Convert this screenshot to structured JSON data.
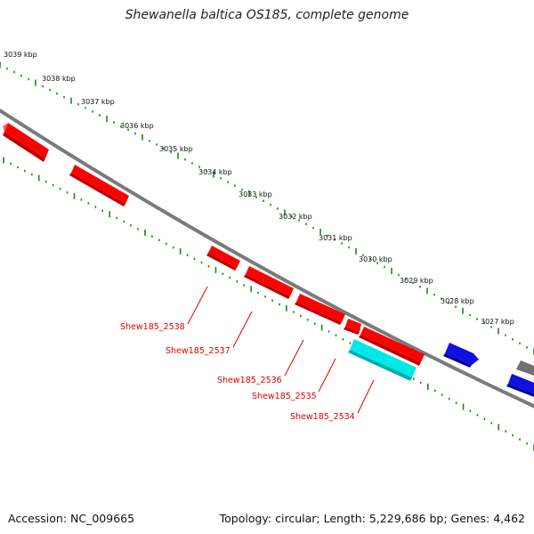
{
  "header": {
    "title": "Shewanella baltica OS185, complete genome"
  },
  "footer": {
    "accession": "Accession: NC_009665",
    "summary": "Topology: circular; Length: 5,229,686 bp; Genes: 4,462"
  },
  "scale_labels": [
    "3039 kbp",
    "3038 kbp",
    "3037 kbp",
    "3036 kbp",
    "3035 kbp",
    "3034 kbp",
    "3033 kbp",
    "3032 kbp",
    "3031 kbp",
    "3030 kbp",
    "3029 kbp",
    "3028 kbp",
    "3027 kbp"
  ],
  "gene_labels": [
    "Shew185_2538",
    "Shew185_2537",
    "Shew185_2536",
    "Shew185_2535",
    "Shew185_2534"
  ],
  "colors": {
    "forward_gene": "#1010e0",
    "reverse_gene": "#ff0000",
    "rna_gene": "#00e8e8",
    "other_gene": "#707070",
    "backbone": "#7a7a7a",
    "tick": "#1a8a1a",
    "label_line": "#e00000"
  }
}
